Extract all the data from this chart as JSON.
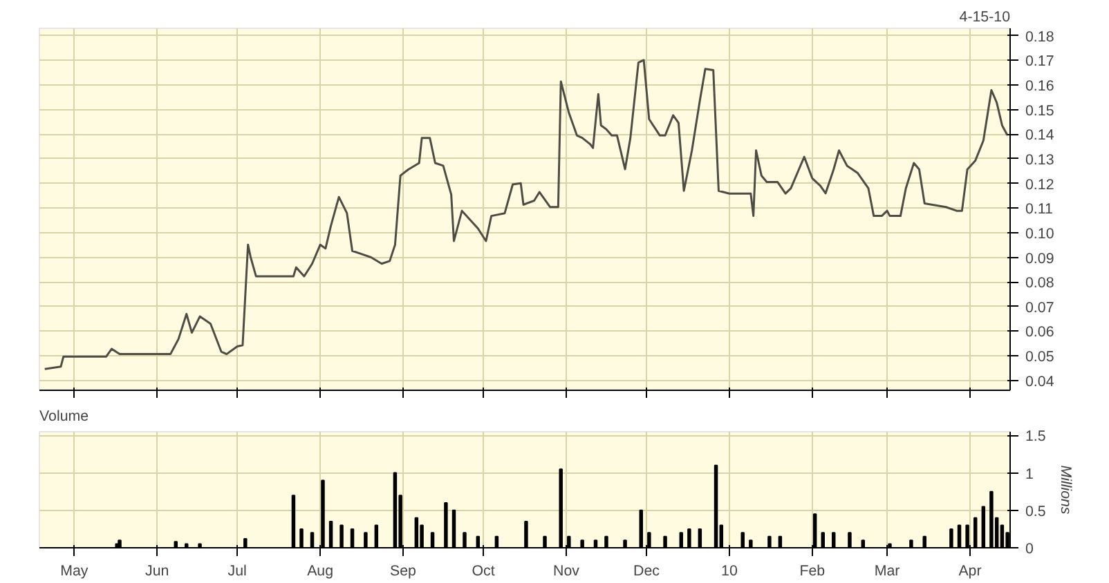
{
  "chart_data": [
    {
      "type": "line",
      "annotations": [
        "4-15-10"
      ],
      "xlim": [
        "2009-04-18",
        "2010-04-16"
      ],
      "xticks": [
        {
          "value": "2009-05-01",
          "label": null
        },
        {
          "value": "2009-06-01",
          "label": null
        },
        {
          "value": "2009-07-01",
          "label": null
        },
        {
          "value": "2009-08-01",
          "label": null
        },
        {
          "value": "2009-09-01",
          "label": null
        },
        {
          "value": "2009-10-01",
          "label": null
        },
        {
          "value": "2009-11-01",
          "label": null
        },
        {
          "value": "2009-12-01",
          "label": null
        },
        {
          "value": "2010-01-01",
          "label": null
        },
        {
          "value": "2010-02-01",
          "label": null
        },
        {
          "value": "2010-03-01",
          "label": null
        },
        {
          "value": "2010-04-01",
          "label": null
        }
      ],
      "ylim": [
        0.036,
        0.183
      ],
      "yticks": [
        0.04,
        0.05,
        0.06,
        0.07,
        0.08,
        0.09,
        {
          "value": 0.1,
          "label": "0.10"
        },
        0.11,
        0.12,
        0.13,
        0.14,
        0.15,
        0.16,
        0.17,
        0.18
      ],
      "tick_labels": "y",
      "grid": true,
      "x": [
        "2009-04-20",
        "2009-04-26",
        "2009-04-27",
        "2009-05-13",
        "2009-05-15",
        "2009-05-18",
        "2009-06-06",
        "2009-06-09",
        "2009-06-12",
        "2009-06-14",
        "2009-06-17",
        "2009-06-21",
        "2009-06-25",
        "2009-06-27",
        "2009-07-01",
        "2009-07-03",
        "2009-07-05",
        "2009-07-06",
        "2009-07-08",
        "2009-07-16",
        "2009-07-22",
        "2009-07-23",
        "2009-07-26",
        "2009-07-29",
        "2009-08-01",
        "2009-08-03",
        "2009-08-05",
        "2009-08-08",
        "2009-08-11",
        "2009-08-13",
        "2009-08-16",
        "2009-08-20",
        "2009-08-24",
        "2009-08-27",
        "2009-08-29",
        "2009-08-31",
        "2009-09-03",
        "2009-09-07",
        "2009-09-08",
        "2009-09-11",
        "2009-09-13",
        "2009-09-16",
        "2009-09-19",
        "2009-09-20",
        "2009-09-23",
        "2009-09-26",
        "2009-09-29",
        "2009-10-02",
        "2009-10-04",
        "2009-10-09",
        "2009-10-12",
        "2009-10-15",
        "2009-10-16",
        "2009-10-20",
        "2009-10-22",
        "2009-10-26",
        "2009-10-29",
        "2009-10-30",
        "2009-11-02",
        "2009-11-05",
        "2009-11-07",
        "2009-11-10",
        "2009-11-11",
        "2009-11-13",
        "2009-11-14",
        "2009-11-16",
        "2009-11-18",
        "2009-11-20",
        "2009-11-23",
        "2009-11-25",
        "2009-11-28",
        "2009-11-30",
        "2009-12-02",
        "2009-12-06",
        "2009-12-08",
        "2009-12-11",
        "2009-12-13",
        "2009-12-15",
        "2009-12-18",
        "2009-12-21",
        "2009-12-23",
        "2009-12-26",
        "2009-12-28",
        "2010-01-01",
        "2010-01-09",
        "2010-01-10",
        "2010-01-11",
        "2010-01-13",
        "2010-01-15",
        "2010-01-19",
        "2010-01-22",
        "2010-01-24",
        "2010-01-27",
        "2010-01-29",
        "2010-02-01",
        "2010-02-04",
        "2010-02-06",
        "2010-02-09",
        "2010-02-11",
        "2010-02-14",
        "2010-02-18",
        "2010-02-22",
        "2010-02-24",
        "2010-02-27",
        "2010-03-01",
        "2010-03-02",
        "2010-03-06",
        "2010-03-08",
        "2010-03-11",
        "2010-03-13",
        "2010-03-15",
        "2010-03-23",
        "2010-03-27",
        "2010-03-29",
        "2010-03-31",
        "2010-04-03",
        "2010-04-06",
        "2010-04-09",
        "2010-04-11",
        "2010-04-13",
        "2010-04-15"
      ],
      "series": [
        {
          "color": "#4d4d45",
          "values": [
            0.0446,
            0.0456,
            0.0497,
            0.0497,
            0.0528,
            0.0507,
            0.0507,
            0.0568,
            0.067,
            0.0594,
            0.066,
            0.063,
            0.0517,
            0.0507,
            0.0538,
            0.0543,
            0.0951,
            0.09,
            0.0823,
            0.0823,
            0.0823,
            0.0859,
            0.0823,
            0.0874,
            0.0951,
            0.0936,
            0.1028,
            0.1145,
            0.1079,
            0.0926,
            0.0915,
            0.09,
            0.0874,
            0.0885,
            0.0951,
            0.1232,
            0.1257,
            0.1283,
            0.1385,
            0.1385,
            0.1283,
            0.1272,
            0.1155,
            0.0966,
            0.1089,
            0.1053,
            0.1017,
            0.0966,
            0.1068,
            0.1079,
            0.1196,
            0.1201,
            0.1114,
            0.113,
            0.1165,
            0.1104,
            0.1104,
            0.1614,
            0.1487,
            0.1395,
            0.1385,
            0.1359,
            0.1344,
            0.1563,
            0.1436,
            0.142,
            0.1395,
            0.1395,
            0.1258,
            0.1385,
            0.1691,
            0.1701,
            0.1461,
            0.1395,
            0.1395,
            0.1477,
            0.1446,
            0.117,
            0.1334,
            0.1538,
            0.1665,
            0.166,
            0.117,
            0.1159,
            0.1159,
            0.1068,
            0.1334,
            0.1232,
            0.1206,
            0.1206,
            0.1159,
            0.118,
            0.1257,
            0.1308,
            0.1221,
            0.1191,
            0.116,
            0.1257,
            0.1334,
            0.1272,
            0.1242,
            0.118,
            0.1068,
            0.1068,
            0.1089,
            0.1068,
            0.1068,
            0.118,
            0.1283,
            0.1257,
            0.1119,
            0.1104,
            0.1089,
            0.1089,
            0.1257,
            0.1293,
            0.1374,
            0.1579,
            0.1528,
            0.1436,
            0.1395
          ]
        }
      ]
    },
    {
      "type": "bar",
      "title": "Volume",
      "ylabel": "Millions",
      "xlim": [
        "2009-04-18",
        "2010-04-16"
      ],
      "xticks": [
        {
          "value": "2009-05-01",
          "label": "May"
        },
        {
          "value": "2009-06-01",
          "label": "Jun"
        },
        {
          "value": "2009-07-01",
          "label": "Jul"
        },
        {
          "value": "2009-08-01",
          "label": "Aug"
        },
        {
          "value": "2009-09-01",
          "label": "Sep"
        },
        {
          "value": "2009-10-01",
          "label": "Oct"
        },
        {
          "value": "2009-11-01",
          "label": "Nov"
        },
        {
          "value": "2009-12-01",
          "label": "Dec"
        },
        {
          "value": "2010-01-01",
          "label": "10"
        },
        {
          "value": "2010-02-01",
          "label": "Feb"
        },
        {
          "value": "2010-03-01",
          "label": "Mar"
        },
        {
          "value": "2010-04-01",
          "label": "Apr"
        }
      ],
      "ylim": [
        0,
        1.55
      ],
      "yticks": [
        0,
        0.5,
        1,
        1.5
      ],
      "grid": true,
      "x": [
        "2009-05-17",
        "2009-05-18",
        "2009-06-08",
        "2009-06-12",
        "2009-06-17",
        "2009-07-04",
        "2009-07-22",
        "2009-07-25",
        "2009-07-29",
        "2009-08-02",
        "2009-08-05",
        "2009-08-09",
        "2009-08-13",
        "2009-08-18",
        "2009-08-22",
        "2009-08-29",
        "2009-08-31",
        "2009-09-06",
        "2009-09-08",
        "2009-09-12",
        "2009-09-17",
        "2009-09-20",
        "2009-09-24",
        "2009-09-29",
        "2009-10-06",
        "2009-10-17",
        "2009-10-24",
        "2009-10-30",
        "2009-11-02",
        "2009-11-07",
        "2009-11-12",
        "2009-11-16",
        "2009-11-23",
        "2009-11-29",
        "2009-12-02",
        "2009-12-08",
        "2009-12-14",
        "2009-12-17",
        "2009-12-21",
        "2009-12-27",
        "2009-12-29",
        "2010-01-06",
        "2010-01-09",
        "2010-01-16",
        "2010-01-20",
        "2010-02-02",
        "2010-02-05",
        "2010-02-09",
        "2010-02-15",
        "2010-02-20",
        "2010-03-02",
        "2010-03-10",
        "2010-03-15",
        "2010-03-25",
        "2010-03-28",
        "2010-03-31",
        "2010-04-03",
        "2010-04-06",
        "2010-04-09",
        "2010-04-11",
        "2010-04-13",
        "2010-04-15"
      ],
      "series": [
        {
          "color": "#000000",
          "values": [
            0.05,
            0.1,
            0.08,
            0.05,
            0.05,
            0.12,
            0.7,
            0.25,
            0.2,
            0.9,
            0.35,
            0.3,
            0.25,
            0.2,
            0.3,
            1.0,
            0.7,
            0.4,
            0.3,
            0.2,
            0.6,
            0.5,
            0.2,
            0.15,
            0.15,
            0.35,
            0.15,
            1.05,
            0.15,
            0.1,
            0.1,
            0.15,
            0.1,
            0.5,
            0.2,
            0.15,
            0.2,
            0.25,
            0.25,
            1.1,
            0.3,
            0.2,
            0.1,
            0.15,
            0.15,
            0.45,
            0.2,
            0.2,
            0.2,
            0.1,
            0.05,
            0.1,
            0.15,
            0.25,
            0.3,
            0.3,
            0.4,
            0.55,
            0.75,
            0.4,
            0.3,
            0.2
          ]
        }
      ]
    }
  ]
}
